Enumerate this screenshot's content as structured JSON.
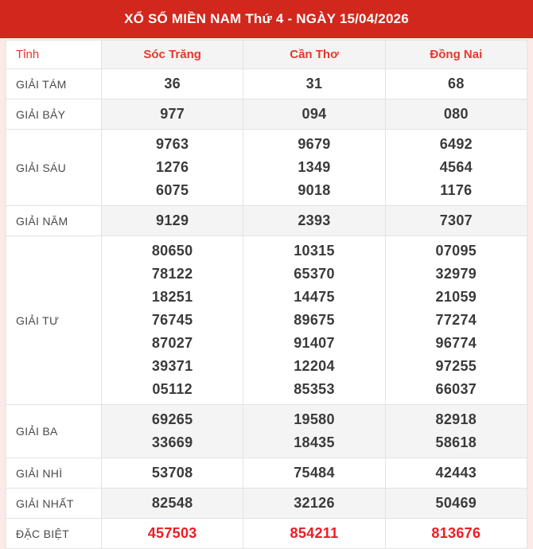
{
  "title_bar": {
    "title": "XỔ SỐ MIỀN NAM Thứ 4 - NGÀY 15/04/2026"
  },
  "table": {
    "corner_label": "Tỉnh",
    "provinces": [
      "Sóc Trăng",
      "Cần Thơ",
      "Đồng Nai"
    ],
    "prize_rows": [
      {
        "label": "GIẢI TÁM",
        "special": false,
        "numbers": [
          [
            "36"
          ],
          [
            "31"
          ],
          [
            "68"
          ]
        ]
      },
      {
        "label": "GIẢI BẢY",
        "special": false,
        "numbers": [
          [
            "977"
          ],
          [
            "094"
          ],
          [
            "080"
          ]
        ]
      },
      {
        "label": "GIẢI SÁU",
        "special": false,
        "numbers": [
          [
            "9763",
            "1276",
            "6075"
          ],
          [
            "9679",
            "1349",
            "9018"
          ],
          [
            "6492",
            "4564",
            "1176"
          ]
        ]
      },
      {
        "label": "GIẢI NĂM",
        "special": false,
        "numbers": [
          [
            "9129"
          ],
          [
            "2393"
          ],
          [
            "7307"
          ]
        ]
      },
      {
        "label": "GIẢI TƯ",
        "special": false,
        "numbers": [
          [
            "80650",
            "78122",
            "18251",
            "76745",
            "87027",
            "39371",
            "05112"
          ],
          [
            "10315",
            "65370",
            "14475",
            "89675",
            "91407",
            "12204",
            "85353"
          ],
          [
            "07095",
            "32979",
            "21059",
            "77274",
            "96774",
            "97255",
            "66037"
          ]
        ]
      },
      {
        "label": "GIẢI BA",
        "special": false,
        "numbers": [
          [
            "69265",
            "33669"
          ],
          [
            "19580",
            "18435"
          ],
          [
            "82918",
            "58618"
          ]
        ]
      },
      {
        "label": "GIẢI NHÌ",
        "special": false,
        "numbers": [
          [
            "53708"
          ],
          [
            "75484"
          ],
          [
            "42443"
          ]
        ]
      },
      {
        "label": "GIẢI NHẤT",
        "special": false,
        "numbers": [
          [
            "82548"
          ],
          [
            "32126"
          ],
          [
            "50469"
          ]
        ]
      },
      {
        "label": "ĐẶC BIỆT",
        "special": true,
        "numbers": [
          [
            "457503"
          ],
          [
            "854211"
          ],
          [
            "813676"
          ]
        ]
      }
    ]
  },
  "colors": {
    "topbar_red": "#d2271d",
    "header_text_red": "#e8372d",
    "special_number_red": "#ec1c24",
    "page_background": "#fbeae8",
    "shaded_cell": "#f4f4f4"
  }
}
